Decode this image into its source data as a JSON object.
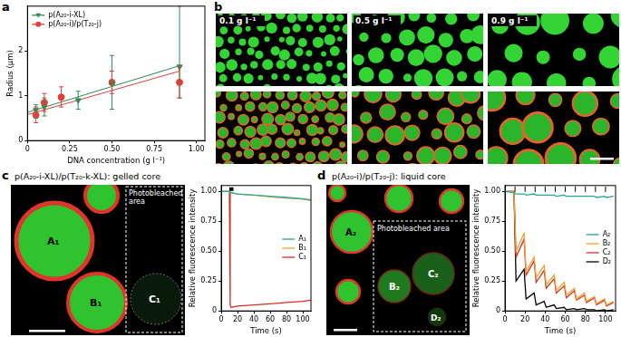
{
  "panel_labels": [
    "a",
    "b",
    "c",
    "d"
  ],
  "micrographs": {
    "b": {
      "labels": [
        "0.1 g l⁻¹",
        "0.5 g l⁻¹",
        "0.9 g l⁻¹"
      ]
    },
    "c": {
      "title": "p(A₂₀-i-XL)/p(T₂₀-k-XL): gelled core",
      "region_label": "Photobleached area",
      "droplets": [
        "A₁",
        "B₁",
        "C₁"
      ]
    },
    "d": {
      "title": "p(A₂₀-i)/p(T₂₀-j): liquid core",
      "region_label": "Photobleached area",
      "droplets": [
        "A₂",
        "B₂",
        "C₂",
        "D₂"
      ]
    }
  },
  "chart_data": [
    {
      "type": "scatter",
      "x_label": "DNA concentration (g l⁻¹)",
      "y_label": "Radius (μm)",
      "xlim": [
        0,
        1.05
      ],
      "xticks": [
        0,
        0.25,
        {
          "value": 0.5,
          "label": "0.50"
        },
        0.75,
        {
          "value": 1,
          "label": "1.00"
        }
      ],
      "ylim": [
        0,
        3
      ],
      "yticks": [
        0,
        1,
        2
      ],
      "grid": false,
      "legend": "upper left",
      "series": [
        {
          "name": "p(A₂₀-i-XL)",
          "color": "#2e8b57",
          "marker": "triangle_down",
          "x": [
            0.05,
            0.1,
            0.3,
            0.5,
            0.9
          ],
          "values": [
            0.68,
            0.75,
            0.9,
            1.27,
            1.65
          ],
          "error_low": [
            0.5,
            0.55,
            0.7,
            0.7,
            0.95
          ],
          "error_high": [
            0.8,
            0.95,
            1.1,
            1.9,
            3.0
          ],
          "fit": {
            "x": [
              0,
              0.9
            ],
            "values": [
              0.63,
              1.67
            ]
          }
        },
        {
          "name": "p(A₂₀-i)/p(T₂₀-j)",
          "color": "#e0413a",
          "marker": "circle",
          "x": [
            0.05,
            0.1,
            0.2,
            0.5,
            0.9
          ],
          "values": [
            0.57,
            0.85,
            0.97,
            1.3,
            1.3
          ],
          "error_low": [
            0.4,
            0.65,
            0.75,
            1.05,
            0.95
          ],
          "error_high": [
            0.75,
            1.05,
            1.2,
            1.55,
            1.65
          ],
          "fit": {
            "x": [
              0,
              0.9
            ],
            "values": [
              0.58,
              1.55
            ]
          }
        }
      ]
    },
    {
      "type": "line",
      "x_label": "Time (s)",
      "y_label": "Relative fluorescence intensity",
      "xlim": [
        0,
        110
      ],
      "xticks": [
        0,
        20,
        40,
        60,
        80,
        100
      ],
      "ylim": [
        0,
        1.05
      ],
      "yticks": [
        0,
        0.25,
        {
          "value": 0.5,
          "label": "0.50"
        },
        0.75,
        {
          "value": 1,
          "label": "1.00"
        }
      ],
      "grid": false,
      "legend": "right",
      "bleach": [
        [
          10,
          15
        ]
      ],
      "x": [
        0,
        10,
        11,
        12,
        20,
        40,
        60,
        80,
        100,
        110
      ],
      "series": [
        {
          "name": "A₁",
          "color": "#26a69a",
          "values": [
            1,
            1,
            0.99,
            0.99,
            0.98,
            0.97,
            0.96,
            0.95,
            0.94,
            0.93
          ]
        },
        {
          "name": "B₁",
          "color": "#f0a030",
          "values": [
            1,
            1,
            0.99,
            0.99,
            0.98,
            0.97,
            0.955,
            0.945,
            0.935,
            0.925
          ]
        },
        {
          "name": "C₁",
          "color": "#d7301f",
          "values": [
            1,
            1,
            0.05,
            0.03,
            0.04,
            0.05,
            0.06,
            0.07,
            0.08,
            0.09
          ]
        }
      ]
    },
    {
      "type": "line",
      "x_label": "Time (s)",
      "y_label": "Relative fluorescence intensity",
      "xlim": [
        0,
        110
      ],
      "xticks": [
        0,
        20,
        40,
        60,
        80,
        100
      ],
      "ylim": [
        0,
        1.05
      ],
      "yticks": [
        0,
        0.25,
        {
          "value": 0.5,
          "label": "0.50"
        },
        0.75,
        {
          "value": 1,
          "label": "1.00"
        }
      ],
      "grid": false,
      "legend": "right",
      "bleach": [
        [
          10,
          10
        ],
        [
          20,
          20
        ],
        [
          30,
          30
        ],
        [
          40,
          40
        ],
        [
          50,
          50
        ],
        [
          60,
          60
        ],
        [
          70,
          70
        ],
        [
          80,
          80
        ],
        [
          90,
          90
        ],
        [
          100,
          100
        ]
      ],
      "x": [
        0,
        9,
        11,
        19,
        21,
        29,
        31,
        39,
        41,
        49,
        51,
        59,
        61,
        69,
        71,
        79,
        81,
        89,
        91,
        99,
        101,
        108
      ],
      "series": [
        {
          "name": "A₂",
          "color": "#26a69a",
          "values": [
            1,
            0.99,
            0.98,
            0.98,
            0.97,
            0.98,
            0.97,
            0.97,
            0.97,
            0.97,
            0.96,
            0.97,
            0.96,
            0.96,
            0.96,
            0.96,
            0.96,
            0.96,
            0.95,
            0.96,
            0.95,
            0.96
          ]
        },
        {
          "name": "B₂",
          "color": "#f0a030",
          "values": [
            1,
            1,
            0.5,
            0.65,
            0.33,
            0.45,
            0.28,
            0.38,
            0.22,
            0.3,
            0.17,
            0.24,
            0.13,
            0.19,
            0.1,
            0.15,
            0.08,
            0.12,
            0.06,
            0.1,
            0.05,
            0.08
          ]
        },
        {
          "name": "C₂",
          "color": "#d7301f",
          "values": [
            1,
            1,
            0.45,
            0.6,
            0.3,
            0.42,
            0.24,
            0.34,
            0.19,
            0.27,
            0.15,
            0.21,
            0.11,
            0.17,
            0.09,
            0.13,
            0.07,
            0.11,
            0.05,
            0.09,
            0.04,
            0.07
          ]
        },
        {
          "name": "D₂",
          "color": "#000000",
          "values": [
            1,
            1,
            0.25,
            0.35,
            0.1,
            0.15,
            0.05,
            0.08,
            0.03,
            0.05,
            0.02,
            0.03,
            0.01,
            0.02,
            0.01,
            0.02,
            0.01,
            0.01,
            0,
            0.01,
            0,
            0.01
          ]
        }
      ]
    }
  ]
}
